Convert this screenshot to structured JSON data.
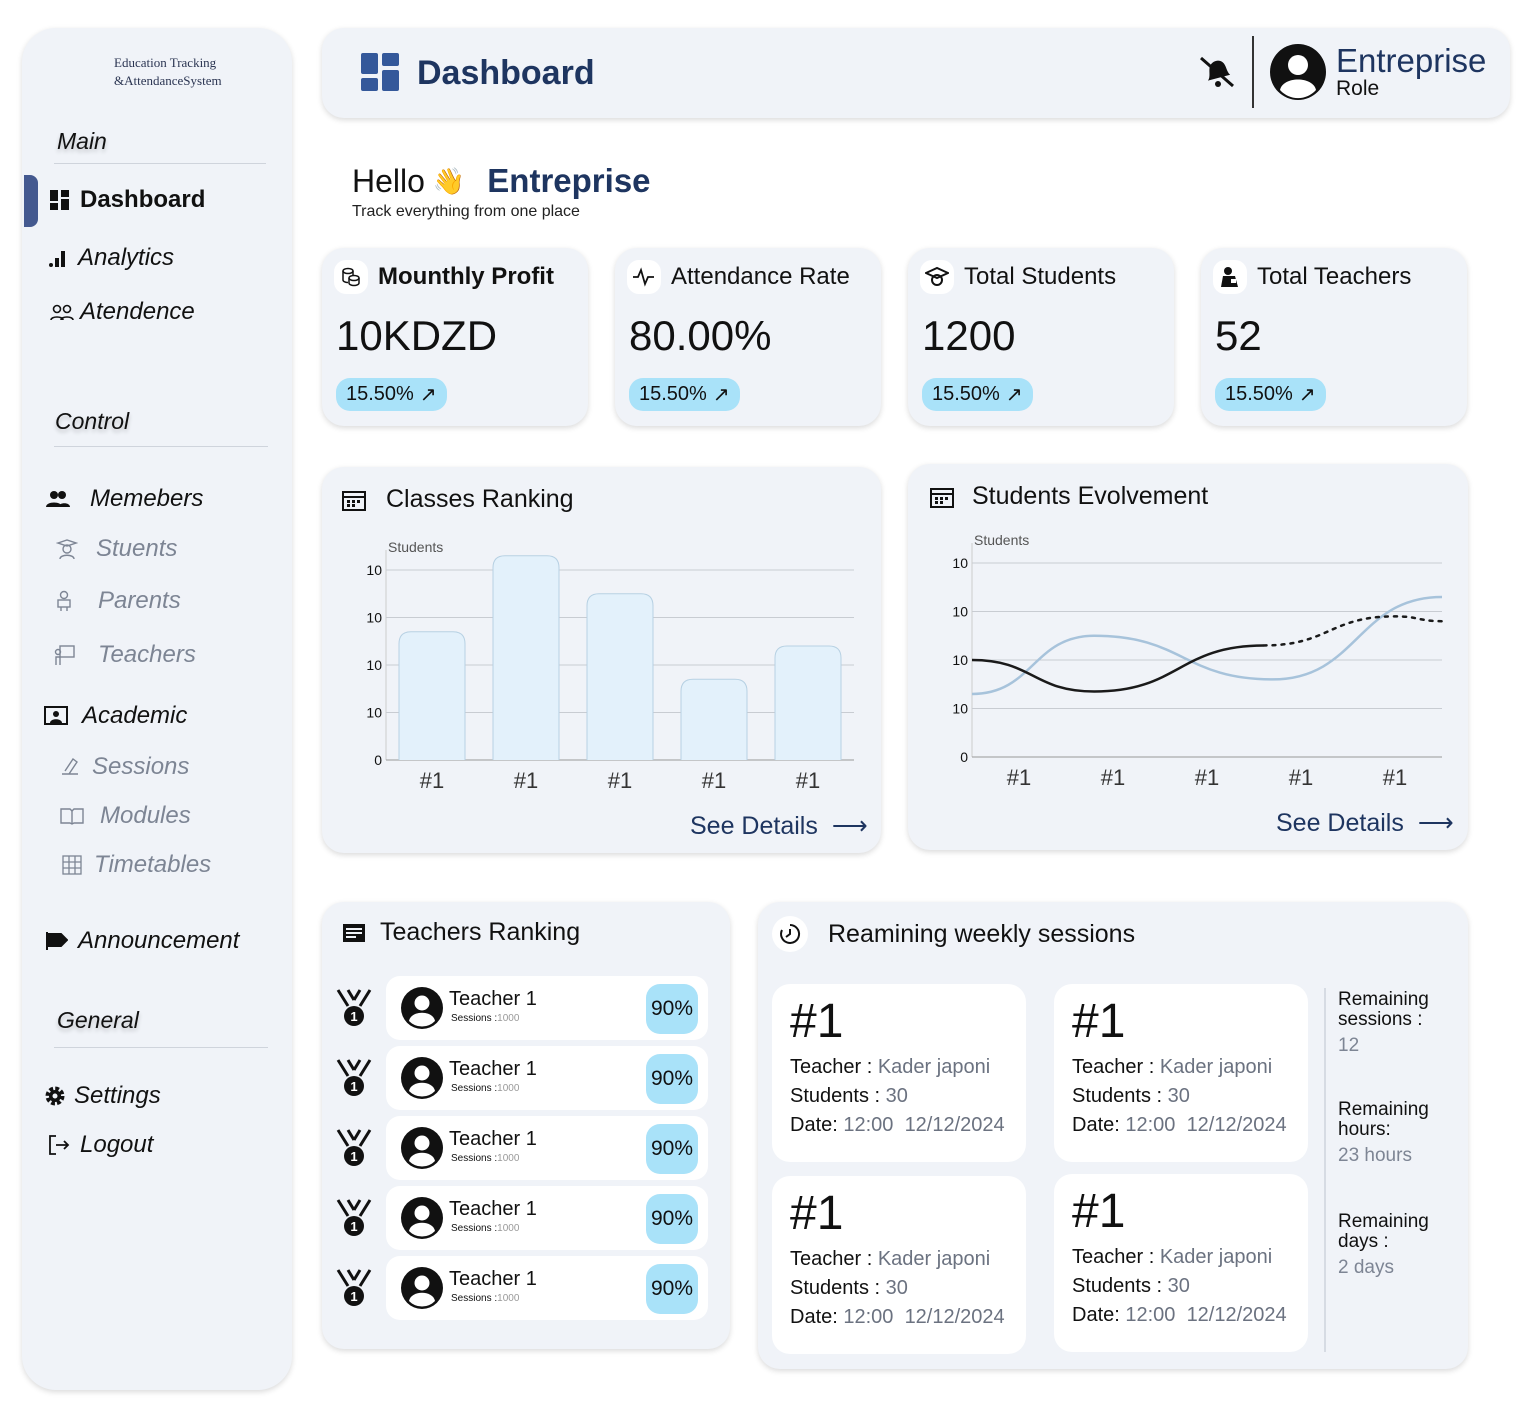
{
  "sidebar": {
    "logo_line1": "Education Tracking",
    "logo_line2": "&AttendanceSystem",
    "sections": {
      "main": "Main",
      "control": "Control",
      "general": "General"
    },
    "items": {
      "dashboard": "Dashboard",
      "analytics": "Analytics",
      "attendance": "Atendence",
      "members": "Memebers",
      "students": "Stuents",
      "parents": "Parents",
      "teachers": "Teachers",
      "academic": "Academic",
      "sessions": "Sessions",
      "modules": "Modules",
      "timetables": "Timetables",
      "announcement": "Announcement",
      "settings": "Settings",
      "logout": "Logout"
    },
    "active": "dashboard"
  },
  "header": {
    "title": "Dashboard",
    "user_name": "Entreprise",
    "user_role": "Role",
    "icons": [
      "bell-off-icon",
      "avatar-icon"
    ]
  },
  "greeting": {
    "hello": "Hello",
    "name": "Entreprise",
    "subtitle": "Track everything from one place"
  },
  "stats": [
    {
      "title": "Mounthly Profit",
      "value": "10KDZD",
      "change": "15.50%",
      "icon": "coins-icon"
    },
    {
      "title": "Attendance Rate",
      "value": "80.00%",
      "change": "15.50%",
      "icon": "pulse-icon"
    },
    {
      "title": "Total Students",
      "value": "1200",
      "change": "15.50%",
      "icon": "graduation-cap-icon"
    },
    {
      "title": "Total Teachers",
      "value": "52",
      "change": "15.50%",
      "icon": "teacher-icon"
    }
  ],
  "colors": {
    "panel": "#f0f3f8",
    "accent": "#1e3560",
    "badge": "#a9e2f9",
    "bar": "#e3f1fb",
    "bar_border": "#b7d1e3",
    "line_blue": "#a7c3db",
    "line_dark": "#1a1a1a",
    "indicator": "#44598f"
  },
  "see_details": "See Details",
  "chart_data": [
    {
      "type": "bar",
      "title": "Classes Ranking",
      "ylabel": "Students",
      "ytick_labels": [
        "0",
        "10",
        "10",
        "10",
        "10"
      ],
      "categories": [
        "#1",
        "#1",
        "#1",
        "#1",
        "#1"
      ],
      "values": [
        2.7,
        4.3,
        3.5,
        1.7,
        2.4
      ],
      "ylim": [
        0,
        4.3
      ],
      "grid": true
    },
    {
      "type": "line",
      "title": "Students Evolvement",
      "ylabel": "Students",
      "ytick_labels": [
        "0",
        "10",
        "10",
        "10",
        "10"
      ],
      "categories": [
        "#1",
        "#1",
        "#1",
        "#1",
        "#1"
      ],
      "grid": true,
      "series": [
        {
          "style": "solid",
          "color": "#a7c3db",
          "x": [
            -0.5,
            0.8,
            2.7,
            4.5
          ],
          "y": [
            1.3,
            2.5,
            1.6,
            3.3
          ]
        },
        {
          "style": "solid-then-dotted",
          "color": "#1a1a1a",
          "x": [
            -0.5,
            0.8,
            2.6,
            4.0,
            4.5
          ],
          "y": [
            2.0,
            1.35,
            2.3,
            2.9,
            2.8
          ],
          "dotted_from_index": 2
        }
      ]
    }
  ],
  "teachers_ranking": {
    "title": "Teachers Ranking",
    "items": [
      {
        "name": "Teacher 1",
        "sessions_label": "Sessions :",
        "sessions": "1000",
        "rate": "90%"
      },
      {
        "name": "Teacher 1",
        "sessions_label": "Sessions :",
        "sessions": "1000",
        "rate": "90%"
      },
      {
        "name": "Teacher 1",
        "sessions_label": "Sessions :",
        "sessions": "1000",
        "rate": "90%"
      },
      {
        "name": "Teacher 1",
        "sessions_label": "Sessions :",
        "sessions": "1000",
        "rate": "90%"
      },
      {
        "name": "Teacher 1",
        "sessions_label": "Sessions :",
        "sessions": "1000",
        "rate": "90%"
      }
    ]
  },
  "weekly_sessions": {
    "title": "Reamining weekly sessions",
    "sessions": [
      {
        "num": "#1",
        "teacher_label": "Teacher :",
        "teacher": "Kader japoni",
        "students_label": "Students :",
        "students": "30",
        "date_label": "Date:",
        "time": "12:00",
        "date": "12/12/2024"
      },
      {
        "num": "#1",
        "teacher_label": "Teacher :",
        "teacher": "Kader japoni",
        "students_label": "Students :",
        "students": "30",
        "date_label": "Date:",
        "time": "12:00",
        "date": "12/12/2024"
      },
      {
        "num": "#1",
        "teacher_label": "Teacher :",
        "teacher": "Kader japoni",
        "students_label": "Students :",
        "students": "30",
        "date_label": "Date:",
        "time": "12:00",
        "date": "12/12/2024"
      },
      {
        "num": "#1",
        "teacher_label": "Teacher :",
        "teacher": "Kader japoni",
        "students_label": "Students :",
        "students": "30",
        "date_label": "Date:",
        "time": "12:00",
        "date": "12/12/2024"
      }
    ],
    "summary": [
      {
        "label": "Remaining sessions :",
        "value": "12"
      },
      {
        "label": "Remaining hours:",
        "value": "23 hours"
      },
      {
        "label": "Remaining days :",
        "value": "2 days"
      }
    ]
  }
}
